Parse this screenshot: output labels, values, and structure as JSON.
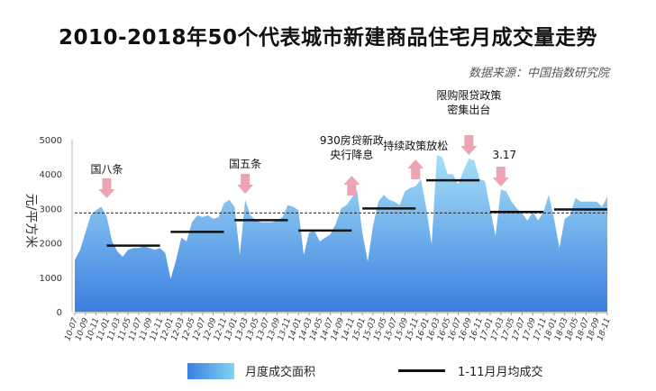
{
  "chart_data": {
    "type": "area",
    "title": "2010-2018年50个代表城市新建商品住宅月成交量走势",
    "source": "数据来源：中国指数研究院",
    "ylabel": "元/平方米",
    "ylim": [
      0,
      5000
    ],
    "yticks": [
      "0",
      "1000",
      "2000",
      "3000",
      "4000",
      "5000"
    ],
    "start_month": "2010-07",
    "xtick_labels": [
      "10-07",
      "10-09",
      "10-11",
      "11-01",
      "11-03",
      "11-05",
      "11-07",
      "11-09",
      "11-11",
      "12-01",
      "12-03",
      "12-05",
      "12-07",
      "12-09",
      "12-11",
      "13-01",
      "13-03",
      "13-05",
      "13-07",
      "13-09",
      "13-11",
      "14-01",
      "14-03",
      "14-05",
      "14-07",
      "14-09",
      "14-11",
      "15-01",
      "15-03",
      "15-05",
      "15-07",
      "15-09",
      "15-11",
      "16-01",
      "16-03",
      "16-05",
      "16-07",
      "16-09",
      "16-11",
      "17-01",
      "17-03",
      "17-05",
      "17-07",
      "17-09",
      "17-11",
      "18-01",
      "18-03",
      "18-05",
      "18-07",
      "18-09",
      "18-11"
    ],
    "series": [
      {
        "name": "月度成交面积",
        "color_top": "#a6e0f7",
        "color_bottom": "#3a7fe0",
        "values": [
          1500,
          1800,
          2300,
          2800,
          2950,
          3050,
          2750,
          2050,
          1750,
          1600,
          1800,
          1850,
          1850,
          1900,
          1850,
          1800,
          1850,
          1700,
          950,
          1500,
          2150,
          2050,
          2600,
          2800,
          2750,
          2800,
          2700,
          2750,
          3150,
          3250,
          3050,
          1650,
          3250,
          2800,
          2650,
          2600,
          2600,
          2600,
          2650,
          2750,
          3100,
          3050,
          2950,
          1650,
          2300,
          2350,
          2050,
          2150,
          2250,
          2550,
          3000,
          3100,
          3300,
          3550,
          2300,
          1450,
          2500,
          3200,
          3400,
          3250,
          3200,
          3100,
          3500,
          3600,
          3650,
          3850,
          3000,
          1950,
          4550,
          4500,
          4000,
          4000,
          3700,
          4100,
          4450,
          4400,
          3850,
          3800,
          3000,
          2200,
          3550,
          3500,
          3200,
          3000,
          2850,
          2650,
          2900,
          2650,
          2900,
          3400,
          2700,
          1850,
          2700,
          2800,
          3300,
          3200,
          3200,
          3200,
          3200,
          3050,
          3350
        ]
      },
      {
        "name": "1-11月月均成交",
        "color": "#111111",
        "segments": [
          {
            "year": "2011",
            "value": 1920
          },
          {
            "year": "2012",
            "value": 2320
          },
          {
            "year": "2013",
            "value": 2660
          },
          {
            "year": "2014",
            "value": 2360
          },
          {
            "year": "2015",
            "value": 3000
          },
          {
            "year": "2016",
            "value": 3820
          },
          {
            "year": "2017",
            "value": 2900
          },
          {
            "year": "2018",
            "value": 2970
          }
        ]
      }
    ],
    "reference_line": {
      "value": 2870,
      "style": "dashed"
    },
    "annotations": [
      {
        "month": "2011-01",
        "lines": [
          "国八条"
        ],
        "arrow": "down"
      },
      {
        "month": "2013-03",
        "lines": [
          "国五条"
        ],
        "arrow": "down"
      },
      {
        "month": "2014-11",
        "lines": [
          "930房贷新政",
          "央行降息"
        ],
        "arrow": "up"
      },
      {
        "month": "2015-11",
        "lines": [
          "持续政策放松"
        ],
        "arrow": "up"
      },
      {
        "month": "2016-09",
        "lines": [
          "限购限贷政策",
          "密集出台"
        ],
        "arrow": "down"
      },
      {
        "month": "2017-03",
        "lines": [
          "3.17"
        ],
        "arrow": "down"
      }
    ],
    "arrow_color": "#eca3b3",
    "legend": {
      "position": "bottom",
      "area_label": "月度成交面积",
      "line_label": "1-11月月均成交"
    }
  }
}
